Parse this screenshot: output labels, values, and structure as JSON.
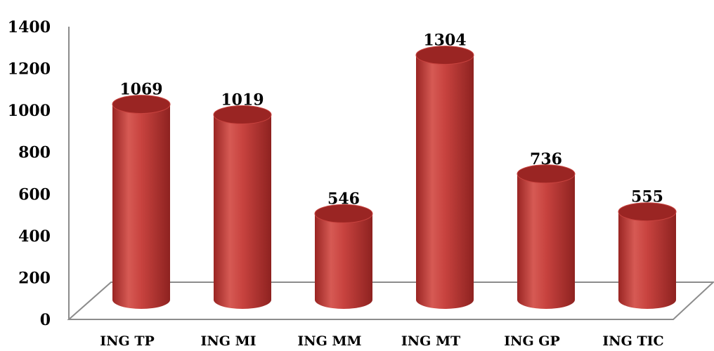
{
  "chart_data": {
    "type": "bar",
    "style": "3d-cylinder",
    "categories": [
      "ING TP",
      "ING MI",
      "ING MM",
      "ING MT",
      "ING GP",
      "ING TIC"
    ],
    "values": [
      1069,
      1019,
      546,
      1304,
      736,
      555
    ],
    "data_labels": [
      "1069",
      "1019",
      "546",
      "1304",
      "736",
      "555"
    ],
    "ylim": [
      0,
      1400
    ],
    "yticks": [
      0,
      200,
      400,
      600,
      800,
      1000,
      1200,
      1400
    ],
    "legend": "none",
    "grid": false,
    "colors": {
      "bar": "#c8433f",
      "bar_dark": "#9a2523",
      "bar_light": "#e2716b",
      "axis": "#8c8c8c"
    }
  }
}
